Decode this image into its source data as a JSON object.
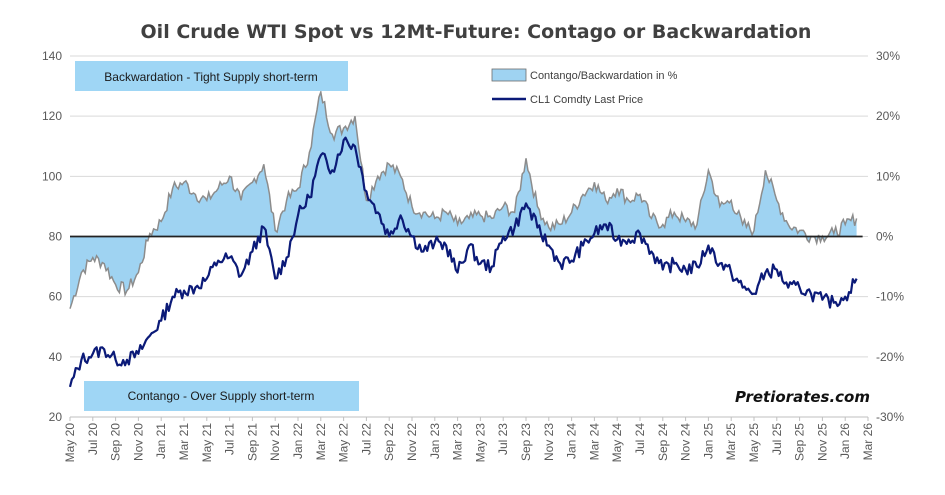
{
  "chart_data": {
    "type": "line",
    "title": "Oil Crude WTI Spot vs 12Mt-Future: Contago or Backwardation",
    "left_axis": {
      "ticks": [
        20,
        40,
        60,
        80,
        100,
        120,
        140
      ],
      "range": [
        20,
        140
      ]
    },
    "right_axis": {
      "ticks": [
        "-30%",
        "-20%",
        "-10%",
        "0%",
        "10%",
        "20%",
        "30%"
      ],
      "range": [
        -30,
        30
      ]
    },
    "x_ticks": [
      "May 20",
      "Jul 20",
      "Sep 20",
      "Nov 20",
      "Jan 21",
      "Mar 21",
      "May 21",
      "Jul 21",
      "Sep 21",
      "Nov 21",
      "Jan 22",
      "Mar 22",
      "May 22",
      "Jul 22",
      "Sep 22",
      "Nov 22",
      "Jan 23",
      "Mar 23",
      "May 23",
      "Jul 23",
      "Sep 23",
      "Nov 23",
      "Jan 24",
      "Mar 24",
      "May 24",
      "Jul 24",
      "Sep 24",
      "Nov 24",
      "Jan 25",
      "Mar 25",
      "May 25",
      "Jul 25",
      "Sep 25",
      "Nov 25",
      "Jan 26",
      "Mar 26"
    ],
    "x_range": [
      "May 20",
      "Mar 26"
    ],
    "grid": "horizontal",
    "legend_position": "top-right",
    "colors": {
      "price": "#0b1a78",
      "spread_fill": "#9fd3f2",
      "spread_line": "#8c8c8c",
      "zero_line": "#222222",
      "box_fill": "#9fd6f5",
      "grid": "#d9d9d9"
    },
    "series": [
      {
        "name": "Contango/Backwardation in %",
        "axis": "right",
        "style": "area",
        "x": [
          "May 20",
          "Jun 20",
          "Jul 20",
          "Aug 20",
          "Sep 20",
          "Oct 20",
          "Nov 20",
          "Dec 20",
          "Jan 21",
          "Feb 21",
          "Mar 21",
          "Apr 21",
          "May 21",
          "Jun 21",
          "Jul 21",
          "Aug 21",
          "Sep 21",
          "Oct 21",
          "Nov 21",
          "Dec 21",
          "Jan 22",
          "Feb 22",
          "Mar 22",
          "Apr 22",
          "May 22",
          "Jun 22",
          "Jul 22",
          "Aug 22",
          "Sep 22",
          "Oct 22",
          "Nov 22",
          "Dec 22",
          "Jan 23",
          "Feb 23",
          "Mar 23",
          "Apr 23",
          "May 23",
          "Jun 23",
          "Jul 23",
          "Aug 23",
          "Sep 23",
          "Oct 23",
          "Nov 23",
          "Dec 23",
          "Jan 24",
          "Feb 24",
          "Mar 24",
          "Apr 24",
          "May 24",
          "Jun 24",
          "Jul 24",
          "Aug 24",
          "Sep 24",
          "Oct 24",
          "Nov 24",
          "Dec 24",
          "Jan 25",
          "Feb 25",
          "Mar 25",
          "Apr 25",
          "May 25",
          "Jun 25",
          "Jul 25",
          "Aug 25",
          "Sep 25",
          "Oct 25",
          "Nov 25",
          "Dec 25",
          "Jan 26",
          "Feb 26"
        ],
        "values": [
          -12,
          -6,
          -3.5,
          -4.5,
          -8,
          -9,
          -6,
          0.5,
          2.5,
          8,
          9,
          7,
          6,
          8,
          10,
          6,
          9,
          12,
          1,
          6,
          8,
          14,
          24,
          17,
          18,
          20,
          6,
          10,
          12,
          10,
          5,
          4,
          3,
          4,
          2,
          3,
          3.5,
          3,
          5,
          4,
          13,
          5,
          1.5,
          2,
          4,
          7,
          9,
          6,
          8,
          6,
          7,
          3,
          2,
          4,
          2.5,
          2,
          11,
          5,
          6,
          2,
          1,
          11,
          6,
          2,
          1,
          0,
          0,
          0.5,
          2,
          3
        ]
      },
      {
        "name": "CL1 Comdty Last Price",
        "axis": "left",
        "style": "line",
        "x": [
          "May 20",
          "Jun 20",
          "Jul 20",
          "Aug 20",
          "Sep 20",
          "Oct 20",
          "Nov 20",
          "Dec 20",
          "Jan 21",
          "Feb 21",
          "Mar 21",
          "Apr 21",
          "May 21",
          "Jun 21",
          "Jul 21",
          "Aug 21",
          "Sep 21",
          "Oct 21",
          "Nov 21",
          "Dec 21",
          "Jan 22",
          "Feb 22",
          "Mar 22",
          "Apr 22",
          "May 22",
          "Jun 22",
          "Jul 22",
          "Aug 22",
          "Sep 22",
          "Oct 22",
          "Nov 22",
          "Dec 22",
          "Jan 23",
          "Feb 23",
          "Mar 23",
          "Apr 23",
          "May 23",
          "Jun 23",
          "Jul 23",
          "Aug 23",
          "Sep 23",
          "Oct 23",
          "Nov 23",
          "Dec 23",
          "Jan 24",
          "Feb 24",
          "Mar 24",
          "Apr 24",
          "May 24",
          "Jun 24",
          "Jul 24",
          "Aug 24",
          "Sep 24",
          "Oct 24",
          "Nov 24",
          "Dec 24",
          "Jan 25",
          "Feb 25",
          "Mar 25",
          "Apr 25",
          "May 25",
          "Jun 25",
          "Jul 25",
          "Aug 25",
          "Sep 25",
          "Oct 25",
          "Nov 25",
          "Dec 25",
          "Jan 26",
          "Feb 26"
        ],
        "values": [
          30,
          39,
          41,
          42.5,
          39,
          39,
          41,
          47,
          52,
          60,
          62,
          63,
          66,
          72,
          73,
          67,
          75,
          83,
          66,
          73,
          87,
          93,
          107,
          102,
          112,
          110,
          95,
          88,
          80,
          87,
          80,
          75,
          78,
          77,
          68,
          77,
          71,
          70,
          80,
          83,
          91,
          83,
          77,
          71,
          72,
          77,
          81,
          84,
          79,
          79,
          81,
          75,
          69,
          71,
          69,
          70,
          77,
          71,
          68,
          63,
          61,
          68,
          69,
          63,
          63,
          61,
          59,
          58,
          60,
          66
        ]
      }
    ],
    "annotations": {
      "backwardation_box": "Backwardation - Tight Supply short-term",
      "contango_box": "Contango - Over Supply short-term",
      "brand": "Pretiorates.com"
    }
  }
}
